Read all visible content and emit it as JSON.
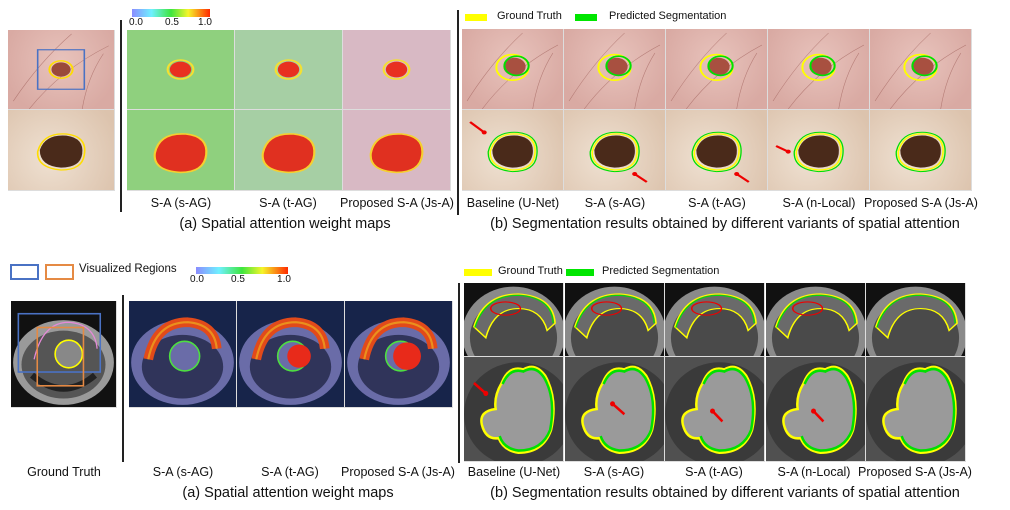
{
  "top": {
    "colorbar": {
      "ticks": [
        "0.0",
        "0.5",
        "1.0"
      ]
    },
    "legend": {
      "ground_truth": "Ground Truth",
      "predicted": "Predicted Segmentation",
      "ground_truth_color": "#ffff00",
      "predicted_color": "#00e600"
    },
    "attention_labels": [
      "S-A (s-AG)",
      "S-A (t-AG)",
      "Proposed S-A (Js-A)"
    ],
    "attention_caption": "(a) Spatial attention weight maps",
    "segmentation_labels": [
      "Baseline (U-Net)",
      "S-A (s-AG)",
      "S-A (t-AG)",
      "S-A (n-Local)",
      "Proposed S-A (Js-A)"
    ],
    "segmentation_caption": "(b) Segmentation results obtained by different variants of spatial attention"
  },
  "bottom": {
    "regions_legend": "Visualized Regions",
    "region_colors": [
      "#4a72c4",
      "#e58a44"
    ],
    "colorbar": {
      "ticks": [
        "0.0",
        "0.5",
        "1.0"
      ]
    },
    "legend": {
      "ground_truth": "Ground Truth",
      "predicted": "Predicted Segmentation"
    },
    "left_label": "Ground Truth",
    "attention_labels": [
      "S-A (s-AG)",
      "S-A (t-AG)",
      "Proposed S-A (Js-A)"
    ],
    "attention_caption": "(a) Spatial attention weight maps",
    "segmentation_labels": [
      "Baseline (U-Net)",
      "S-A (s-AG)",
      "S-A (t-AG)",
      "S-A (n-Local)",
      "Proposed S-A (Js-A)"
    ],
    "segmentation_caption": "(b) Segmentation results obtained by different variants of spatial attention"
  }
}
